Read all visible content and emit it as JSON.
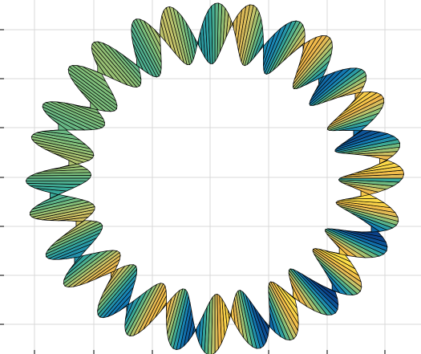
{
  "chart_data": {
    "type": "surface",
    "title": "",
    "xlabel": "",
    "ylabel": "",
    "description_shape": "twisted ribbon torus",
    "torus": {
      "major_radius": 1.0,
      "aspect_y": 0.93,
      "ribbon_halfwidth": 0.2,
      "radial_wobble": 0.06,
      "twists": 14,
      "segments": 336
    },
    "grid": true,
    "colormap": [
      "#0b3f87",
      "#1580b8",
      "#37a89a",
      "#7fbf7b",
      "#c7c46a",
      "#f0b64b",
      "#fde047"
    ],
    "edge_color": "#000000",
    "grid_color": "#d9d9d9",
    "axis_color": "#262626"
  }
}
